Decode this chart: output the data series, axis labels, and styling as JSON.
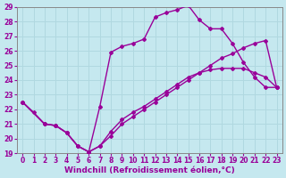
{
  "xlabel": "Windchill (Refroidissement éolien,°C)",
  "ylabel": "",
  "background_color": "#c5e8ef",
  "line_color": "#990099",
  "grid_color": "#b0d8e0",
  "xlim": [
    -0.5,
    23.5
  ],
  "ylim": [
    19,
    29
  ],
  "xticks": [
    0,
    1,
    2,
    3,
    4,
    5,
    6,
    7,
    8,
    9,
    10,
    11,
    12,
    13,
    14,
    15,
    16,
    17,
    18,
    19,
    20,
    21,
    22,
    23
  ],
  "yticks": [
    19,
    20,
    21,
    22,
    23,
    24,
    25,
    26,
    27,
    28,
    29
  ],
  "curve1_x": [
    0,
    1,
    2,
    3,
    4,
    5,
    6,
    7,
    8,
    9,
    10,
    11,
    12,
    13,
    14,
    15,
    16,
    17,
    18,
    19,
    20,
    21,
    22,
    23
  ],
  "curve1_y": [
    22.5,
    21.8,
    21.0,
    20.9,
    20.4,
    19.5,
    19.1,
    22.2,
    25.9,
    26.3,
    26.5,
    26.8,
    28.3,
    28.6,
    28.8,
    29.1,
    28.1,
    27.5,
    27.5,
    26.5,
    25.2,
    24.2,
    23.5,
    23.5
  ],
  "curve2_x": [
    0,
    2,
    3,
    4,
    5,
    6,
    7,
    8,
    9,
    10,
    11,
    12,
    13,
    14,
    15,
    16,
    17,
    18,
    19,
    20,
    21,
    22,
    23
  ],
  "curve2_y": [
    22.5,
    21.0,
    20.9,
    20.4,
    19.5,
    19.1,
    19.5,
    20.2,
    21.0,
    21.5,
    22.0,
    22.5,
    23.0,
    23.5,
    24.0,
    24.5,
    25.0,
    25.5,
    25.8,
    26.2,
    26.5,
    26.7,
    23.5
  ],
  "curve3_x": [
    0,
    2,
    3,
    4,
    5,
    6,
    7,
    8,
    9,
    10,
    11,
    12,
    13,
    14,
    15,
    16,
    17,
    18,
    19,
    20,
    21,
    22,
    23
  ],
  "curve3_y": [
    22.5,
    21.0,
    20.9,
    20.4,
    19.5,
    19.1,
    19.5,
    20.5,
    21.3,
    21.8,
    22.2,
    22.7,
    23.2,
    23.7,
    24.2,
    24.5,
    24.7,
    24.8,
    24.8,
    24.8,
    24.5,
    24.2,
    23.5
  ],
  "tick_fontsize": 5.5,
  "xlabel_fontsize": 6.5,
  "marker": "D",
  "markersize": 2.0,
  "linewidth": 1.0
}
